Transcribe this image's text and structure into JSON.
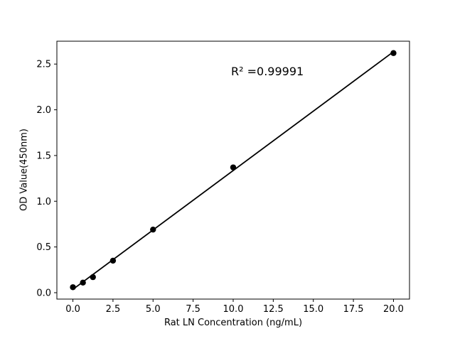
{
  "figure": {
    "background": "#ffffff"
  },
  "chart_data": {
    "type": "scatter",
    "title": "",
    "xlabel": "Rat LN Concentration (ng/mL)",
    "ylabel": "OD Value(450nm)",
    "annotation": "R² =0.99991",
    "x": [
      0,
      0.625,
      1.25,
      2.5,
      5,
      10,
      20
    ],
    "y": [
      0.06,
      0.11,
      0.17,
      0.35,
      0.69,
      1.37,
      2.62
    ],
    "fit": "linear",
    "xlim": [
      -1,
      21
    ],
    "ylim": [
      -0.07,
      2.75
    ],
    "x_ticks": [
      0,
      2.5,
      5,
      7.5,
      10,
      12.5,
      15,
      17.5,
      20
    ],
    "x_tick_labels": [
      "0.0",
      "2.5",
      "5.0",
      "7.5",
      "10.0",
      "12.5",
      "15.0",
      "17.5",
      "20.0"
    ],
    "y_ticks": [
      0,
      0.5,
      1,
      1.5,
      2,
      2.5
    ],
    "y_tick_labels": [
      "0.0",
      "0.5",
      "1.0",
      "1.5",
      "2.0",
      "2.5"
    ],
    "marker_color": "#000000",
    "line_color": "#000000",
    "axis_color": "#000000",
    "grid": false,
    "legend": "none"
  }
}
